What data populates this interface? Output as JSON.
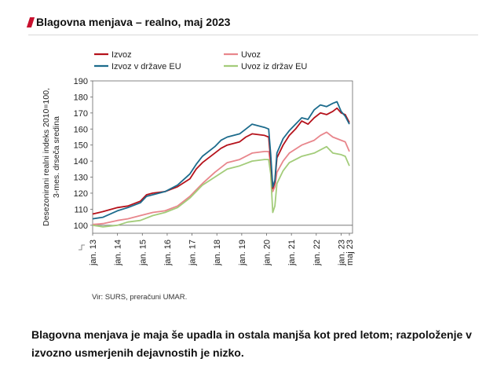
{
  "header": {
    "title": "Blagovna menjava – realno, maj 2023"
  },
  "source": "Vir: SURS, preračuni UMAR.",
  "caption": "Blagovna menjava je maja še upadla in ostala manjša kot pred letom; razpoloženje v izvozno usmerjenih dejavnostih je nizko.",
  "colors": {
    "izvoz": "#b5121b",
    "uvoz": "#e8868c",
    "izvoz_eu": "#1c6b8c",
    "uvoz_eu": "#a3cc7a",
    "accent": "#c8102e"
  },
  "chart_data": {
    "type": "line",
    "ylabel_lines": [
      "Desezonirani realni indeks 2010=100,",
      "3-mes. drseča sredina"
    ],
    "ylim": [
      95,
      190
    ],
    "yticks": [
      "190",
      "180",
      "170",
      "160",
      "150",
      "140",
      "130",
      "120",
      "110",
      "100"
    ],
    "ytick_values": [
      190,
      180,
      170,
      160,
      150,
      140,
      130,
      120,
      110,
      100
    ],
    "xticks": [
      "jan. 13",
      "jan. 14",
      "jan. 15",
      "jan. 16",
      "jan. 17",
      "jan. 18",
      "jan. 19",
      "jan. 20",
      "jan. 21",
      "jan. 22",
      "jan. 23",
      "maj 23"
    ],
    "x_range": [
      "2013-01",
      "2023-05"
    ],
    "grid": false,
    "legend_position": "top-left",
    "series": [
      {
        "name": "Izvoz",
        "color": "#b5121b",
        "points": [
          [
            "2013-01",
            107
          ],
          [
            "2013-06",
            108.5
          ],
          [
            "2014-01",
            111
          ],
          [
            "2014-06",
            112
          ],
          [
            "2014-12",
            115
          ],
          [
            "2015-03",
            119
          ],
          [
            "2015-06",
            120
          ],
          [
            "2015-12",
            121
          ],
          [
            "2016-06",
            124
          ],
          [
            "2016-12",
            129
          ],
          [
            "2017-03",
            135
          ],
          [
            "2017-06",
            139
          ],
          [
            "2017-12",
            145
          ],
          [
            "2018-03",
            148
          ],
          [
            "2018-06",
            150
          ],
          [
            "2018-12",
            152
          ],
          [
            "2019-03",
            155
          ],
          [
            "2019-06",
            157
          ],
          [
            "2019-12",
            156
          ],
          [
            "2020-02",
            155
          ],
          [
            "2020-03",
            140
          ],
          [
            "2020-04",
            123
          ],
          [
            "2020-05",
            127
          ],
          [
            "2020-06",
            142
          ],
          [
            "2020-09",
            150
          ],
          [
            "2020-12",
            156
          ],
          [
            "2021-03",
            160
          ],
          [
            "2021-06",
            165
          ],
          [
            "2021-09",
            163
          ],
          [
            "2021-12",
            167
          ],
          [
            "2022-03",
            170
          ],
          [
            "2022-06",
            169
          ],
          [
            "2022-09",
            171
          ],
          [
            "2022-11",
            173
          ],
          [
            "2023-01",
            170
          ],
          [
            "2023-03",
            169
          ],
          [
            "2023-05",
            164
          ]
        ]
      },
      {
        "name": "Uvoz",
        "color": "#e8868c",
        "points": [
          [
            "2013-01",
            100.5
          ],
          [
            "2013-06",
            101
          ],
          [
            "2014-01",
            103
          ],
          [
            "2014-06",
            104
          ],
          [
            "2014-12",
            106
          ],
          [
            "2015-06",
            108
          ],
          [
            "2015-12",
            109
          ],
          [
            "2016-06",
            112
          ],
          [
            "2016-12",
            118
          ],
          [
            "2017-06",
            126
          ],
          [
            "2017-12",
            133
          ],
          [
            "2018-06",
            139
          ],
          [
            "2018-12",
            141
          ],
          [
            "2019-06",
            145
          ],
          [
            "2019-12",
            146
          ],
          [
            "2020-02",
            146
          ],
          [
            "2020-03",
            138
          ],
          [
            "2020-04",
            121
          ],
          [
            "2020-05",
            124
          ],
          [
            "2020-06",
            133
          ],
          [
            "2020-09",
            140
          ],
          [
            "2020-12",
            145
          ],
          [
            "2021-06",
            150
          ],
          [
            "2021-12",
            153
          ],
          [
            "2022-03",
            156
          ],
          [
            "2022-06",
            158
          ],
          [
            "2022-09",
            155
          ],
          [
            "2023-01",
            153
          ],
          [
            "2023-03",
            152
          ],
          [
            "2023-05",
            146
          ]
        ]
      },
      {
        "name": "Izvoz v države EU",
        "color": "#1c6b8c",
        "points": [
          [
            "2013-01",
            104
          ],
          [
            "2013-06",
            105
          ],
          [
            "2014-01",
            109
          ],
          [
            "2014-06",
            111
          ],
          [
            "2014-12",
            114
          ],
          [
            "2015-03",
            118
          ],
          [
            "2015-06",
            119
          ],
          [
            "2015-12",
            121
          ],
          [
            "2016-06",
            125
          ],
          [
            "2016-12",
            132
          ],
          [
            "2017-03",
            138
          ],
          [
            "2017-06",
            143
          ],
          [
            "2017-12",
            149
          ],
          [
            "2018-03",
            153
          ],
          [
            "2018-06",
            155
          ],
          [
            "2018-12",
            157
          ],
          [
            "2019-03",
            160
          ],
          [
            "2019-06",
            163
          ],
          [
            "2019-12",
            161
          ],
          [
            "2020-02",
            160
          ],
          [
            "2020-03",
            144
          ],
          [
            "2020-04",
            124
          ],
          [
            "2020-05",
            128
          ],
          [
            "2020-06",
            145
          ],
          [
            "2020-09",
            154
          ],
          [
            "2020-12",
            159
          ],
          [
            "2021-03",
            163
          ],
          [
            "2021-06",
            167
          ],
          [
            "2021-09",
            166
          ],
          [
            "2021-12",
            172
          ],
          [
            "2022-03",
            175
          ],
          [
            "2022-06",
            174
          ],
          [
            "2022-09",
            176
          ],
          [
            "2022-11",
            177
          ],
          [
            "2023-01",
            171
          ],
          [
            "2023-03",
            168
          ],
          [
            "2023-05",
            163
          ]
        ]
      },
      {
        "name": "Uvoz iz držav EU",
        "color": "#a3cc7a",
        "points": [
          [
            "2013-01",
            100
          ],
          [
            "2013-06",
            99
          ],
          [
            "2014-01",
            100
          ],
          [
            "2014-06",
            102
          ],
          [
            "2014-12",
            103
          ],
          [
            "2015-06",
            106
          ],
          [
            "2015-12",
            108
          ],
          [
            "2016-06",
            111
          ],
          [
            "2016-12",
            117
          ],
          [
            "2017-06",
            125
          ],
          [
            "2017-12",
            130
          ],
          [
            "2018-06",
            135
          ],
          [
            "2018-12",
            137
          ],
          [
            "2019-06",
            140
          ],
          [
            "2019-12",
            141
          ],
          [
            "2020-02",
            141
          ],
          [
            "2020-03",
            132
          ],
          [
            "2020-04",
            108
          ],
          [
            "2020-05",
            112
          ],
          [
            "2020-06",
            126
          ],
          [
            "2020-09",
            134
          ],
          [
            "2020-12",
            139
          ],
          [
            "2021-06",
            143
          ],
          [
            "2021-12",
            145
          ],
          [
            "2022-03",
            147
          ],
          [
            "2022-06",
            149
          ],
          [
            "2022-09",
            145
          ],
          [
            "2023-01",
            144
          ],
          [
            "2023-03",
            143
          ],
          [
            "2023-05",
            137
          ]
        ]
      }
    ]
  }
}
